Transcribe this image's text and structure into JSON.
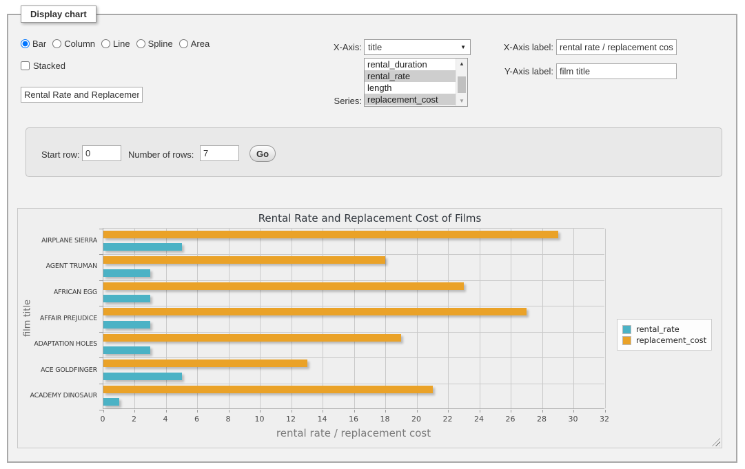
{
  "form": {
    "legend": "Display chart",
    "chart_types": [
      {
        "label": "Bar",
        "selected": true
      },
      {
        "label": "Column",
        "selected": false
      },
      {
        "label": "Line",
        "selected": false
      },
      {
        "label": "Spline",
        "selected": false
      },
      {
        "label": "Area",
        "selected": false
      }
    ],
    "stacked": {
      "label": "Stacked",
      "checked": false
    },
    "title_input": {
      "value": "Rental Rate and Replacement Cost of Films"
    },
    "x_axis": {
      "label": "X-Axis:",
      "selected": "title"
    },
    "series": {
      "label": "Series:",
      "options": [
        {
          "label": "rental_duration",
          "selected": false
        },
        {
          "label": "rental_rate",
          "selected": true
        },
        {
          "label": "length",
          "selected": false
        },
        {
          "label": "replacement_cost",
          "selected": true
        }
      ]
    },
    "x_axis_label": {
      "label": "X-Axis label:",
      "value": "rental rate / replacement cost"
    },
    "y_axis_label": {
      "label": "Y-Axis label:",
      "value": "film title"
    }
  },
  "row_controls": {
    "start_row_label": "Start row:",
    "start_row_value": "0",
    "num_rows_label": "Number of rows:",
    "num_rows_value": "7",
    "go_label": "Go"
  },
  "icons": {
    "dropdown_arrow": "▼",
    "scroll_up_arrow": "▲",
    "scroll_down_arrow": "▼"
  },
  "chart_data": {
    "type": "bar",
    "orientation": "horizontal",
    "title": "Rental Rate and Replacement Cost of Films",
    "xlabel": "rental rate / replacement cost",
    "ylabel": "film title",
    "categories": [
      "AIRPLANE SIERRA",
      "AGENT TRUMAN",
      "AFRICAN EGG",
      "AFFAIR PREJUDICE",
      "ADAPTATION HOLES",
      "ACE GOLDFINGER",
      "ACADEMY DINOSAUR"
    ],
    "series": [
      {
        "name": "rental_rate",
        "color": "#4bb2c5",
        "values": [
          4.99,
          2.99,
          2.99,
          2.99,
          2.99,
          4.99,
          0.99
        ]
      },
      {
        "name": "replacement_cost",
        "color": "#eaa228",
        "values": [
          28.99,
          17.99,
          22.99,
          26.99,
          18.99,
          12.99,
          20.99
        ]
      }
    ],
    "xlim": [
      0,
      32
    ],
    "xticks": [
      0,
      2,
      4,
      6,
      8,
      10,
      12,
      14,
      16,
      18,
      20,
      22,
      24,
      26,
      28,
      30,
      32
    ],
    "grid": true,
    "legend_position": "right"
  }
}
